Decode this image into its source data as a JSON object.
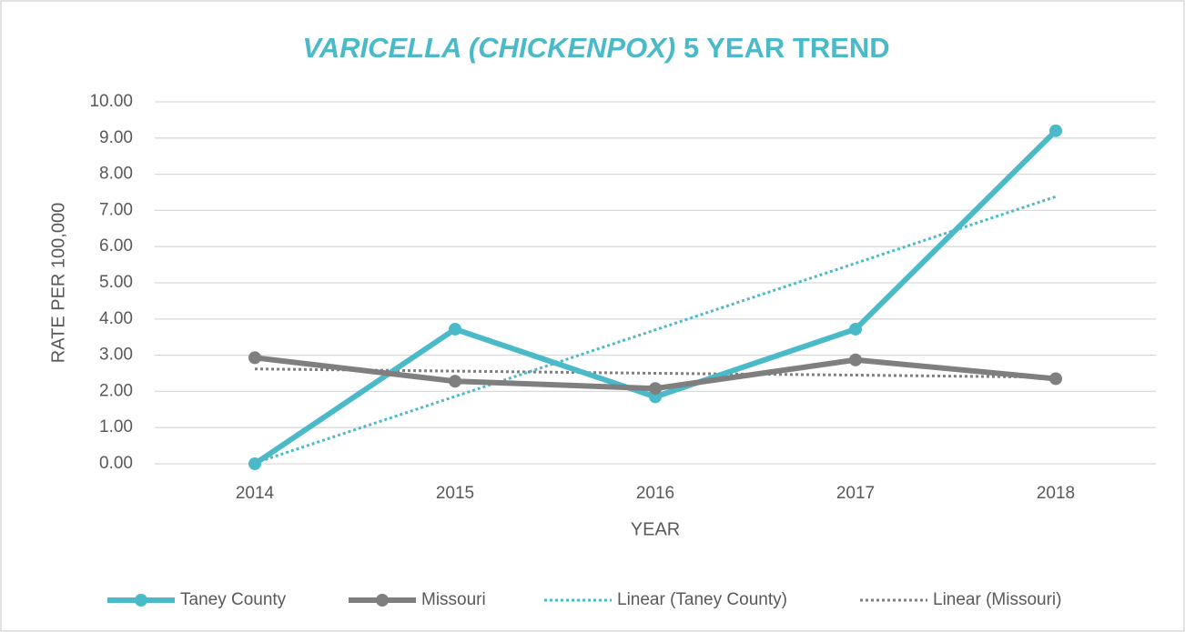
{
  "chart_data": {
    "type": "line",
    "title": {
      "italic": "VARICELLA (CHICKENPOX)",
      "plain": "5 YEAR TREND"
    },
    "x_label": "YEAR",
    "y_label": "RATE PER 100,000",
    "categories": [
      "2014",
      "2015",
      "2016",
      "2017",
      "2018"
    ],
    "series": [
      {
        "name": "Taney County",
        "color": "#4bbac8",
        "values": [
          0,
          3.72,
          1.85,
          3.72,
          9.2
        ]
      },
      {
        "name": "Missouri",
        "color": "#7f7f7f",
        "values": [
          2.93,
          2.28,
          2.08,
          2.87,
          2.35
        ]
      },
      {
        "name": "Linear (Taney County)",
        "color": "#4bbac8",
        "dashed": true,
        "values": [
          0.02,
          1.86,
          3.7,
          5.54,
          7.38
        ]
      },
      {
        "name": "Linear (Missouri)",
        "color": "#7f7f7f",
        "dashed": true,
        "values": [
          2.62,
          2.56,
          2.5,
          2.45,
          2.39
        ]
      }
    ],
    "ylim": [
      0,
      10
    ],
    "yticks": [
      {
        "value": 0,
        "label": "0.00"
      },
      {
        "value": 1,
        "label": "1.00"
      },
      {
        "value": 2,
        "label": "2.00"
      },
      {
        "value": 3,
        "label": "3.00"
      },
      {
        "value": 4,
        "label": "4.00"
      },
      {
        "value": 5,
        "label": "5.00"
      },
      {
        "value": 6,
        "label": "6.00"
      },
      {
        "value": 7,
        "label": "7.00"
      },
      {
        "value": 8,
        "label": "8.00"
      },
      {
        "value": 9,
        "label": "9.00"
      },
      {
        "value": 10,
        "label": "10.00"
      }
    ],
    "grid": true,
    "legend": "bottom"
  }
}
